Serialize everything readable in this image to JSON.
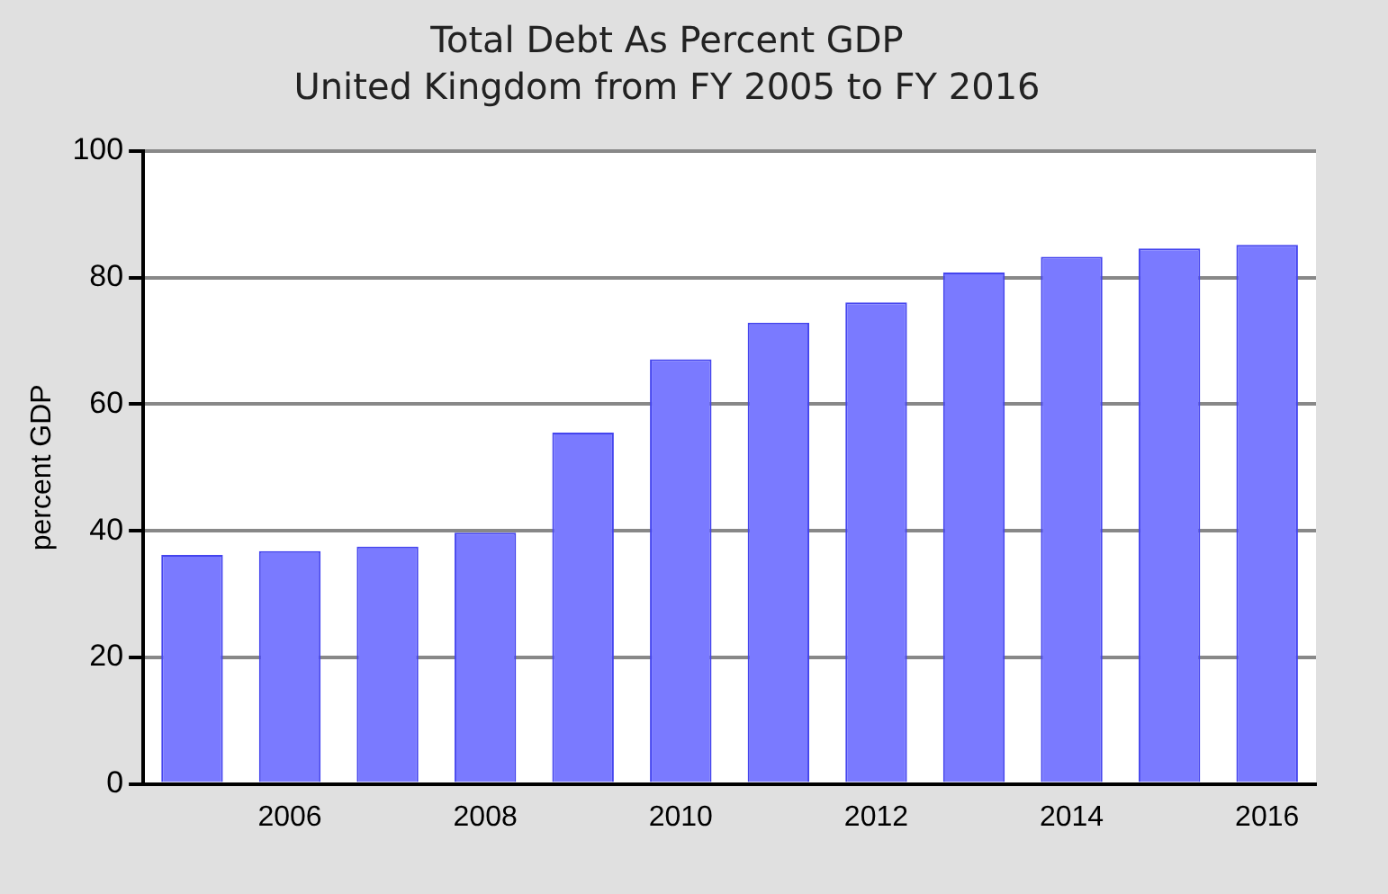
{
  "chart_data": {
    "type": "bar",
    "title": "Total Debt As Percent GDP",
    "subtitle": "United Kingdom from FY 2005 to FY 2016",
    "ylabel": "percent GDP",
    "categories": [
      null,
      "2006",
      null,
      "2008",
      null,
      "2010",
      null,
      "2012",
      null,
      "2014",
      null,
      "2016"
    ],
    "values": [
      36.2,
      36.8,
      37.5,
      39.7,
      55.5,
      67.1,
      72.9,
      76.1,
      80.8,
      83.3,
      84.6,
      85.2
    ],
    "color": "#7a7aff",
    "ylim": [
      0,
      100
    ],
    "yticks": [
      0,
      20,
      40,
      60,
      80,
      100
    ],
    "grid": "y",
    "legend": false
  }
}
